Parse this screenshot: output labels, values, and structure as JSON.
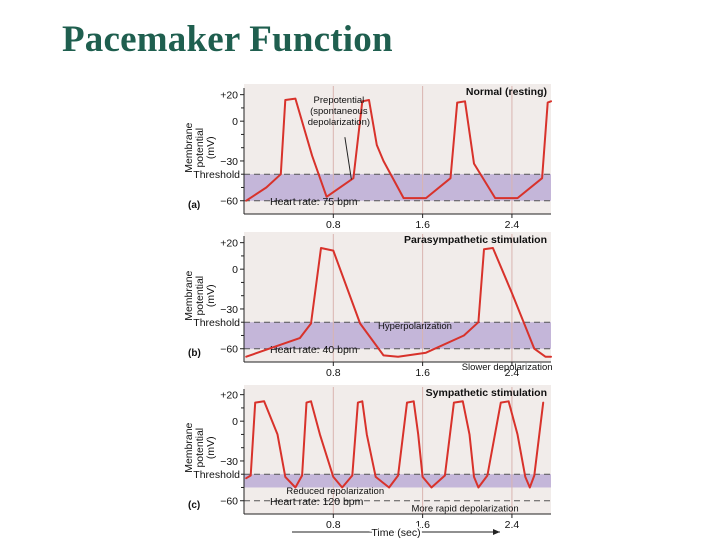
{
  "slide": {
    "title": "Pacemaker Function"
  },
  "colors": {
    "title": "#1f5f4f",
    "panel_bg": "#f1ecea",
    "band": "#c4b6d9",
    "trace": "#d8322b",
    "grid": "#d9b4b0",
    "threshold_line": "#555555",
    "text": "#111111"
  },
  "shared": {
    "y_axis_label_lines": [
      "Membrane",
      "potential",
      "(mV)"
    ],
    "threshold_label": "Threshold",
    "x_axis_label": "Time (sec)"
  },
  "chart_data": [
    {
      "type": "line",
      "panel_label": "(a)",
      "title": "Normal (resting)",
      "heart_rate_label": "Heart rate: 75 bpm",
      "ylim": [
        -70,
        22
      ],
      "yticks": [
        20,
        0,
        -30,
        -60
      ],
      "ytick_labels": [
        "+20",
        "0",
        "−30",
        "−60"
      ],
      "xlim": [
        0,
        2.75
      ],
      "xticks": [
        0.8,
        1.6,
        2.4
      ],
      "xtick_labels": [
        "0.8",
        "1.6",
        "2.4"
      ],
      "threshold": -40,
      "band": [
        -40,
        -60
      ],
      "grid": true,
      "series": [
        {
          "x": [
            0.02,
            0.2,
            0.33,
            0.37,
            0.46,
            0.61,
            0.74,
            0.98,
            1.06,
            1.12,
            1.19,
            1.25,
            1.43,
            1.63,
            1.85,
            1.91,
            1.98,
            2.06,
            2.25,
            2.45,
            2.67,
            2.72,
            2.75
          ],
          "y": [
            -60,
            -50,
            -40,
            16,
            17,
            -26,
            -57,
            -43,
            15,
            16,
            -18,
            -30,
            -58,
            -58,
            -43,
            14,
            15,
            -32,
            -58,
            -58,
            -43,
            14,
            15
          ]
        }
      ],
      "annotations": [
        {
          "text_lines": [
            "Prepotential",
            "(spontaneous",
            "depolarization)"
          ],
          "x": 0.85,
          "y": 3
        }
      ]
    },
    {
      "type": "line",
      "panel_label": "(b)",
      "title": "Parasympathetic stimulation",
      "heart_rate_label": "Heart rate: 40 bpm",
      "ylim": [
        -70,
        22
      ],
      "yticks": [
        20,
        0,
        -30,
        -60
      ],
      "ytick_labels": [
        "+20",
        "0",
        "−30",
        "−60"
      ],
      "xlim": [
        0,
        2.75
      ],
      "xticks": [
        0.8,
        1.6,
        2.4
      ],
      "xtick_labels": [
        "0.8",
        "1.6",
        "2.4"
      ],
      "threshold": -40,
      "band": [
        -40,
        -60
      ],
      "grid": true,
      "series": [
        {
          "x": [
            0.02,
            0.5,
            0.6,
            0.69,
            0.8,
            1.04,
            1.25,
            1.38,
            1.63,
            1.97,
            2.1,
            2.15,
            2.23,
            2.4,
            2.6,
            2.7,
            2.75
          ],
          "y": [
            -66,
            -52,
            -41,
            16,
            14,
            -41,
            -65,
            -66,
            -63,
            -50,
            -40,
            15,
            16,
            -18,
            -60,
            -66,
            -66
          ]
        }
      ],
      "annotations": [
        {
          "text": "Hyperpolarization",
          "x": 1.2,
          "y": -45
        },
        {
          "text": "Slower depolarization",
          "x": 1.95,
          "y": -76
        }
      ]
    },
    {
      "type": "line",
      "panel_label": "(c)",
      "title": "Sympathetic stimulation",
      "heart_rate_label": "Heart rate: 120 bpm",
      "ylim": [
        -70,
        22
      ],
      "yticks": [
        20,
        0,
        -30,
        -60
      ],
      "ytick_labels": [
        "+20",
        "0",
        "−30",
        "−60"
      ],
      "xlim": [
        0,
        2.75
      ],
      "xticks": [
        0.8,
        1.6,
        2.4
      ],
      "xtick_labels": [
        "0.8",
        "1.6",
        "2.4"
      ],
      "threshold": -40,
      "band": [
        -40,
        -50
      ],
      "grid": true,
      "series": [
        {
          "x": [
            0.02,
            0.06,
            0.1,
            0.18,
            0.3,
            0.37,
            0.46,
            0.52,
            0.56,
            0.6,
            0.68,
            0.8,
            0.88,
            0.97,
            1.02,
            1.06,
            1.1,
            1.18,
            1.3,
            1.38,
            1.46,
            1.52,
            1.56,
            1.6,
            1.68,
            1.8,
            1.88,
            1.96,
            2.02,
            2.06,
            2.1,
            2.18,
            2.3,
            2.37,
            2.45,
            2.52,
            2.56,
            2.6,
            2.68
          ],
          "y": [
            -43,
            -41,
            14,
            15,
            -10,
            -42,
            -50,
            -41,
            14,
            15,
            -10,
            -42,
            -50,
            -41,
            14,
            15,
            -10,
            -42,
            -50,
            -41,
            14,
            15,
            -10,
            -42,
            -50,
            -41,
            14,
            15,
            -10,
            -42,
            -50,
            -41,
            14,
            15,
            -10,
            -42,
            -50,
            -41,
            14
          ]
        }
      ],
      "annotations": [
        {
          "text": "Reduced repolarization",
          "x": 0.38,
          "y": -55
        },
        {
          "text": "More rapid depolarization",
          "x": 1.5,
          "y": -68
        }
      ]
    }
  ]
}
